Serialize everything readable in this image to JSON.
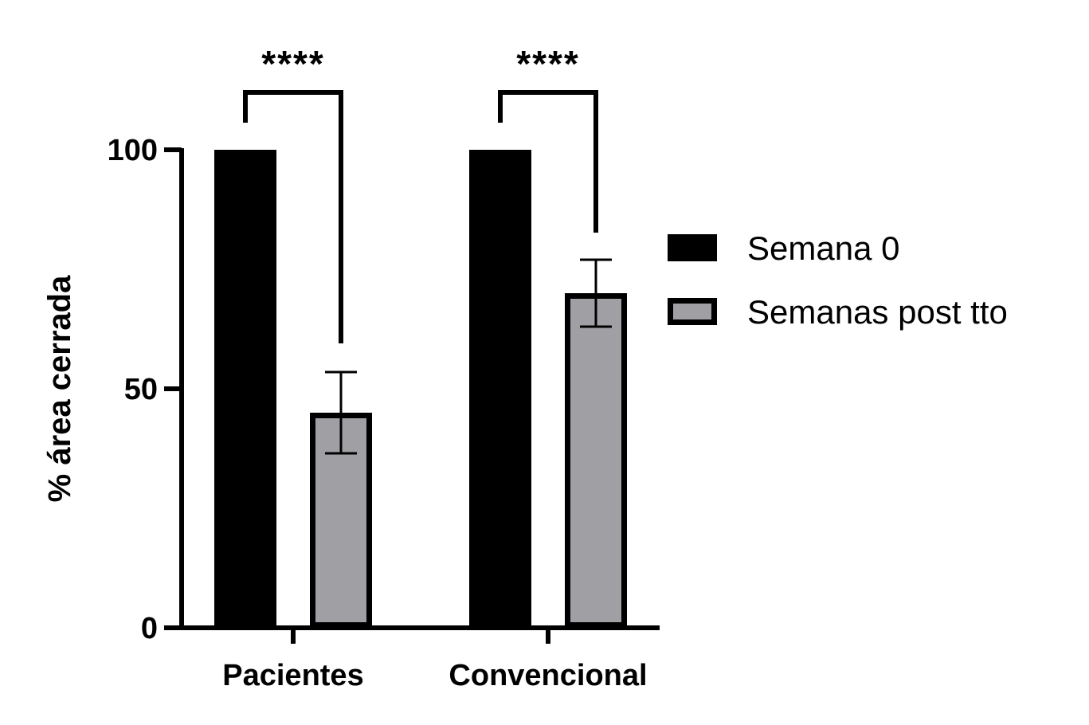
{
  "chart_data": {
    "type": "bar",
    "title": "",
    "xlabel": "",
    "ylabel": "% área cerrada",
    "ylim": [
      0,
      100
    ],
    "yticks": [
      0,
      50,
      100
    ],
    "categories": [
      "Pacientes",
      "Convencional"
    ],
    "series": [
      {
        "name": "Semana 0",
        "values": [
          100,
          100
        ],
        "color": "#000000"
      },
      {
        "name": "Semanas post tto",
        "values": [
          45,
          70
        ],
        "error": [
          8.5,
          7
        ],
        "color": "#a0a0a4"
      }
    ],
    "significance": [
      "****",
      "****"
    ],
    "legend_position": "right",
    "grid": false
  }
}
